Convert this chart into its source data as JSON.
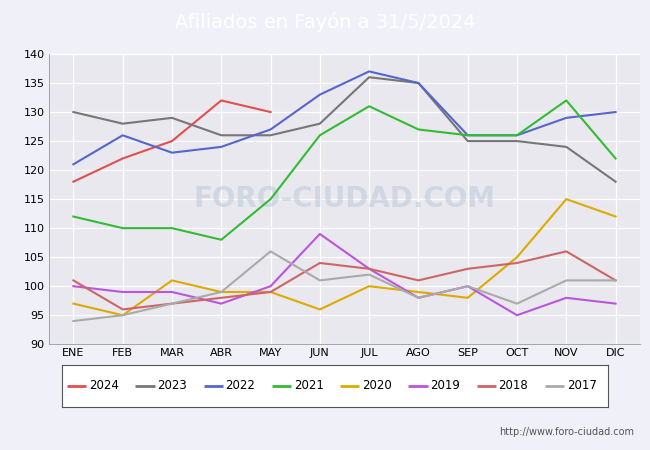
{
  "title": "Afiliados en Fayón a 31/5/2024",
  "title_bg_color": "#5588cc",
  "title_text_color": "white",
  "ylim": [
    90,
    140
  ],
  "yticks": [
    90,
    95,
    100,
    105,
    110,
    115,
    120,
    125,
    130,
    135,
    140
  ],
  "months": [
    "ENE",
    "FEB",
    "MAR",
    "ABR",
    "MAY",
    "JUN",
    "JUL",
    "AGO",
    "SEP",
    "OCT",
    "NOV",
    "DIC"
  ],
  "watermark": "FORO-CIUDAD.COM",
  "footer_url": "http://www.foro-ciudad.com",
  "series": {
    "2024": {
      "color": "#e05050",
      "data": [
        118,
        122,
        125,
        132,
        130,
        null,
        null,
        null,
        null,
        null,
        null,
        null
      ]
    },
    "2023": {
      "color": "#777777",
      "data": [
        130,
        128,
        129,
        126,
        126,
        128,
        136,
        135,
        125,
        125,
        124,
        118
      ]
    },
    "2022": {
      "color": "#5566cc",
      "data": [
        121,
        126,
        123,
        124,
        127,
        133,
        137,
        135,
        126,
        126,
        129,
        130
      ]
    },
    "2021": {
      "color": "#33bb33",
      "data": [
        112,
        110,
        110,
        108,
        115,
        126,
        131,
        127,
        126,
        126,
        132,
        122
      ]
    },
    "2020": {
      "color": "#ddaa00",
      "data": [
        97,
        95,
        101,
        99,
        99,
        96,
        100,
        99,
        98,
        105,
        115,
        112
      ]
    },
    "2019": {
      "color": "#bb55dd",
      "data": [
        100,
        99,
        99,
        97,
        100,
        109,
        103,
        98,
        100,
        95,
        98,
        97
      ]
    },
    "2018": {
      "color": "#cc6666",
      "data": [
        101,
        96,
        97,
        98,
        99,
        104,
        103,
        101,
        103,
        104,
        106,
        101
      ]
    },
    "2017": {
      "color": "#aaaaaa",
      "data": [
        94,
        95,
        97,
        99,
        106,
        101,
        102,
        98,
        100,
        97,
        101,
        101
      ]
    }
  },
  "legend_order": [
    "2024",
    "2023",
    "2022",
    "2021",
    "2020",
    "2019",
    "2018",
    "2017"
  ],
  "outer_bg_color": "#f0f0f8",
  "plot_bg_color": "#e8e8ee",
  "inner_plot_bg": "#ffffff",
  "grid_color": "#d8d8e0",
  "title_fontsize": 14,
  "tick_fontsize": 8,
  "legend_fontsize": 8.5,
  "watermark_color": "#c0ccdd",
  "watermark_alpha": 0.6
}
